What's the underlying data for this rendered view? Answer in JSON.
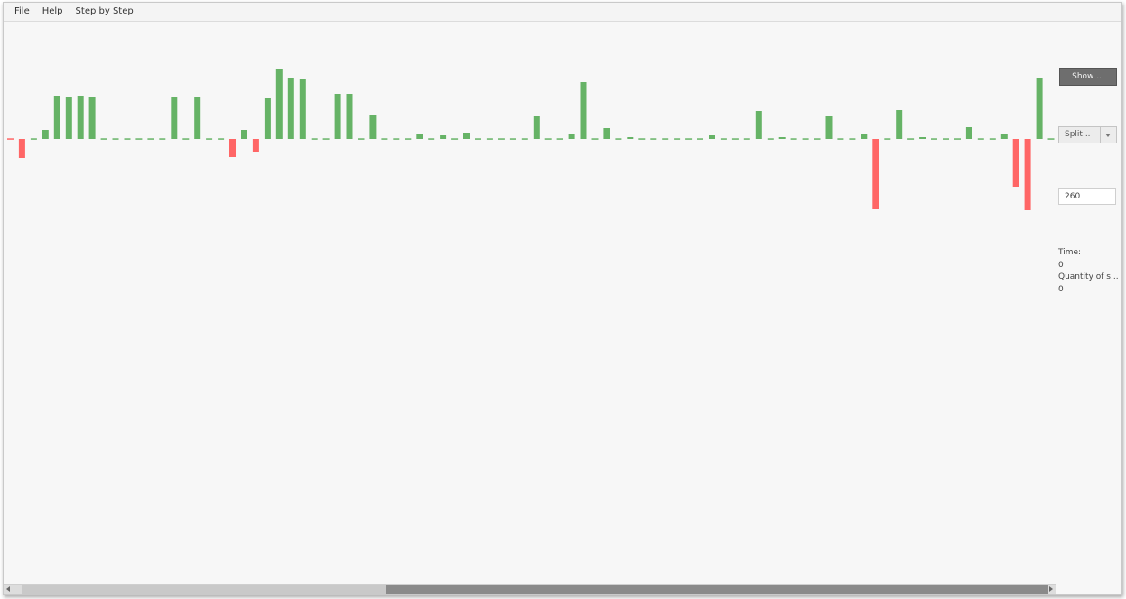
{
  "menu": {
    "file": "File",
    "help": "Help",
    "step_by_step": "Step by Step"
  },
  "controls": {
    "show_button": "Show ...",
    "split_select": "Split...",
    "size_value": "260"
  },
  "info": {
    "time_label": "Time:",
    "time_value": "0",
    "quantity_label": "Quantity of s...",
    "quantity_value": "0"
  },
  "scrollbar": {
    "position": 0.355,
    "visible_fraction": 0.645
  },
  "chart_data": {
    "type": "bar",
    "colors": {
      "positive": "#66b366",
      "negative": "#ff6666",
      "zero": "#66b366"
    },
    "values": [
      0,
      -21,
      0,
      10,
      48,
      46,
      48,
      46,
      0,
      0,
      0,
      0,
      0,
      0,
      46,
      0,
      47,
      0,
      0,
      -20,
      10,
      -14,
      45,
      78,
      68,
      66,
      0,
      0,
      50,
      50,
      0,
      27,
      0,
      0,
      0,
      5,
      0,
      4,
      0,
      7,
      0,
      0,
      0,
      0,
      0,
      25,
      0,
      0,
      5,
      63,
      0,
      12,
      0,
      2,
      0,
      0,
      0,
      0,
      0,
      0,
      4,
      0,
      0,
      0,
      31,
      0,
      2,
      0,
      0,
      0,
      25,
      0,
      0,
      5,
      -78,
      0,
      32,
      0,
      2,
      0,
      0,
      0,
      13,
      0,
      0,
      5,
      -53,
      -79,
      68,
      0,
      3
    ],
    "ylim": [
      -90,
      90
    ]
  }
}
